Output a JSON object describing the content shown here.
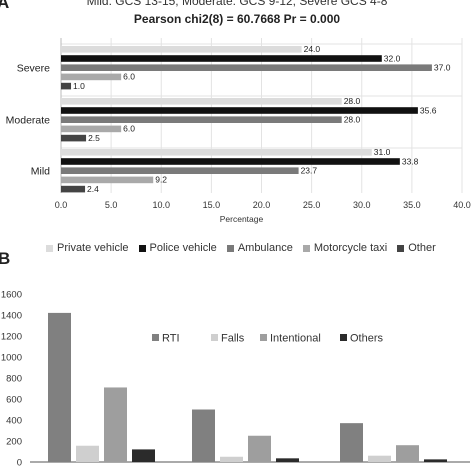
{
  "panel_a": {
    "label": "A",
    "header_line": "Mild: GCS 13-15, Moderate: GCS 9-12, Severe GCS 4-8",
    "stats_line": "Pearson chi2(8) =  60.7668   Pr = 0.000"
  },
  "panel_b": {
    "label": "B"
  },
  "chart_data": [
    {
      "type": "bar",
      "orientation": "horizontal",
      "categories": [
        "Severe",
        "Moderate",
        "Mild"
      ],
      "series": [
        {
          "name": "Private vehicle",
          "color": "#dcdcdc",
          "values": [
            24.0,
            28.0,
            31.0
          ],
          "labels": [
            "24.0",
            "28.0",
            "31.0"
          ]
        },
        {
          "name": "Police vehicle",
          "color": "#111111",
          "values": [
            32.0,
            35.6,
            33.8
          ],
          "labels": [
            "32.0",
            "35.6",
            "33.8"
          ]
        },
        {
          "name": "Ambulance",
          "color": "#7a7a7a",
          "values": [
            37.0,
            28.0,
            23.7
          ],
          "labels": [
            "37.0",
            "28.0",
            "23.7"
          ]
        },
        {
          "name": "Motorcycle taxi",
          "color": "#a9a9a9",
          "values": [
            6.0,
            6.0,
            9.2
          ],
          "labels": [
            "6.0",
            "6.0",
            "9.2"
          ]
        },
        {
          "name": "Other",
          "color": "#444444",
          "values": [
            1.0,
            2.5,
            2.4
          ],
          "labels": [
            "1.0",
            "2.5",
            "2.4"
          ]
        }
      ],
      "xlabel": "Percentage",
      "xlim": [
        0,
        40
      ],
      "xticks": [
        "0.0",
        "5.0",
        "10.0",
        "15.0",
        "20.0",
        "25.0",
        "30.0",
        "35.0",
        "40.0"
      ],
      "legend": "bottom"
    },
    {
      "type": "bar",
      "orientation": "vertical",
      "groups": 3,
      "series": [
        {
          "name": "RTI",
          "color": "#808080",
          "values": [
            1420,
            500,
            370
          ]
        },
        {
          "name": "Falls",
          "color": "#cfcfcf",
          "values": [
            155,
            50,
            60
          ]
        },
        {
          "name": "Intentional",
          "color": "#9e9e9e",
          "values": [
            710,
            250,
            160
          ]
        },
        {
          "name": "Others",
          "color": "#2b2b2b",
          "values": [
            120,
            35,
            25
          ]
        }
      ],
      "ylim": [
        0,
        1600
      ],
      "yticks": [
        "0",
        "200",
        "400",
        "600",
        "800",
        "1000",
        "1200",
        "1400",
        "1600"
      ],
      "legend": "top-right"
    }
  ]
}
